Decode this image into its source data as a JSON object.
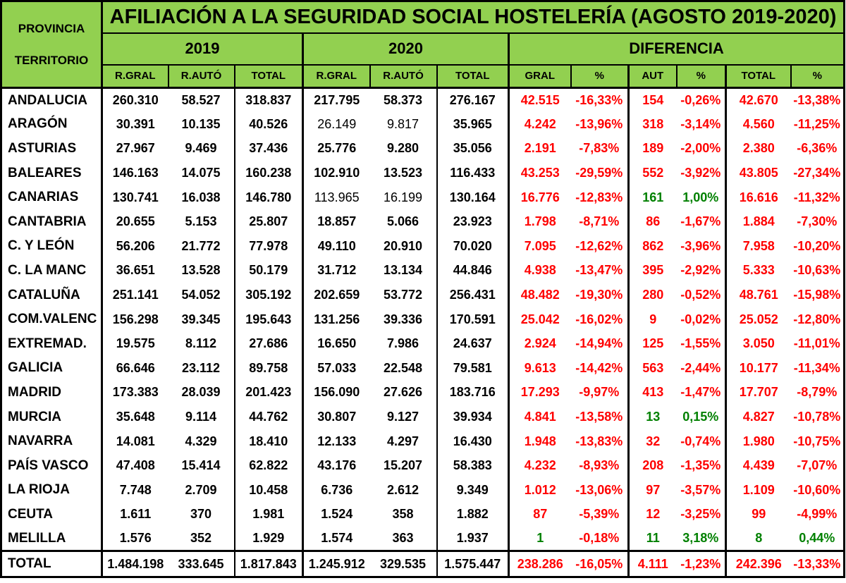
{
  "header": {
    "corner_line1": "PROVINCIA",
    "corner_line2": "TERRITORIO",
    "title": "AFILIACIÓN A LA SEGURIDAD SOCIAL HOSTELERÍA (AGOSTO 2019-2020)",
    "groups": [
      "2019",
      "2020",
      "DIFERENCIA"
    ],
    "sub_columns": [
      "R.GRAL",
      "R.AUTÓ",
      "TOTAL",
      "R.GRAL",
      "R.AUTÓ",
      "TOTAL",
      "GRAL",
      "%",
      "AUT",
      "%",
      "TOTAL",
      "%"
    ]
  },
  "colors": {
    "header_bg": "#92D050",
    "negative_text": "#FF0000",
    "positive_text": "#008000",
    "default_text": "#000000",
    "border": "#000000"
  },
  "rows": [
    {
      "name": "ANDALUCIA",
      "y2019": [
        "260.310",
        "58.527",
        "318.837"
      ],
      "y2020": [
        "217.795",
        "58.373",
        "276.167"
      ],
      "y2020_regular": [],
      "dif": [
        "42.515",
        "-16,33%",
        "154",
        "-0,26%",
        "42.670",
        "-13,38%"
      ],
      "dif_green": []
    },
    {
      "name": "ARAGÓN",
      "y2019": [
        "30.391",
        "10.135",
        "40.526"
      ],
      "y2020": [
        "26.149",
        "9.817",
        "35.965"
      ],
      "y2020_regular": [
        0,
        1
      ],
      "dif": [
        "4.242",
        "-13,96%",
        "318",
        "-3,14%",
        "4.560",
        "-11,25%"
      ],
      "dif_green": []
    },
    {
      "name": "ASTURIAS",
      "y2019": [
        "27.967",
        "9.469",
        "37.436"
      ],
      "y2020": [
        "25.776",
        "9.280",
        "35.056"
      ],
      "y2020_regular": [],
      "dif": [
        "2.191",
        "-7,83%",
        "189",
        "-2,00%",
        "2.380",
        "-6,36%"
      ],
      "dif_green": []
    },
    {
      "name": "BALEARES",
      "y2019": [
        "146.163",
        "14.075",
        "160.238"
      ],
      "y2020": [
        "102.910",
        "13.523",
        "116.433"
      ],
      "y2020_regular": [],
      "dif": [
        "43.253",
        "-29,59%",
        "552",
        "-3,92%",
        "43.805",
        "-27,34%"
      ],
      "dif_green": []
    },
    {
      "name": "CANARIAS",
      "y2019": [
        "130.741",
        "16.038",
        "146.780"
      ],
      "y2020": [
        "113.965",
        "16.199",
        "130.164"
      ],
      "y2020_regular": [
        0,
        1
      ],
      "dif": [
        "16.776",
        "-12,83%",
        "161",
        "1,00%",
        "16.616",
        "-11,32%"
      ],
      "dif_green": [
        2,
        3
      ]
    },
    {
      "name": "CANTABRIA",
      "y2019": [
        "20.655",
        "5.153",
        "25.807"
      ],
      "y2020": [
        "18.857",
        "5.066",
        "23.923"
      ],
      "y2020_regular": [],
      "dif": [
        "1.798",
        "-8,71%",
        "86",
        "-1,67%",
        "1.884",
        "-7,30%"
      ],
      "dif_green": []
    },
    {
      "name": "C. Y LEÓN",
      "y2019": [
        "56.206",
        "21.772",
        "77.978"
      ],
      "y2020": [
        "49.110",
        "20.910",
        "70.020"
      ],
      "y2020_regular": [],
      "dif": [
        "7.095",
        "-12,62%",
        "862",
        "-3,96%",
        "7.958",
        "-10,20%"
      ],
      "dif_green": []
    },
    {
      "name": "C. LA MANC",
      "y2019": [
        "36.651",
        "13.528",
        "50.179"
      ],
      "y2020": [
        "31.712",
        "13.134",
        "44.846"
      ],
      "y2020_regular": [],
      "dif": [
        "4.938",
        "-13,47%",
        "395",
        "-2,92%",
        "5.333",
        "-10,63%"
      ],
      "dif_green": []
    },
    {
      "name": "CATALUÑA",
      "y2019": [
        "251.141",
        "54.052",
        "305.192"
      ],
      "y2020": [
        "202.659",
        "53.772",
        "256.431"
      ],
      "y2020_regular": [],
      "dif": [
        "48.482",
        "-19,30%",
        "280",
        "-0,52%",
        "48.761",
        "-15,98%"
      ],
      "dif_green": []
    },
    {
      "name": "COM.VALENC",
      "y2019": [
        "156.298",
        "39.345",
        "195.643"
      ],
      "y2020": [
        "131.256",
        "39.336",
        "170.591"
      ],
      "y2020_regular": [],
      "dif": [
        "25.042",
        "-16,02%",
        "9",
        "-0,02%",
        "25.052",
        "-12,80%"
      ],
      "dif_green": []
    },
    {
      "name": "EXTREMAD.",
      "y2019": [
        "19.575",
        "8.112",
        "27.686"
      ],
      "y2020": [
        "16.650",
        "7.986",
        "24.637"
      ],
      "y2020_regular": [],
      "dif": [
        "2.924",
        "-14,94%",
        "125",
        "-1,55%",
        "3.050",
        "-11,01%"
      ],
      "dif_green": []
    },
    {
      "name": "GALICIA",
      "y2019": [
        "66.646",
        "23.112",
        "89.758"
      ],
      "y2020": [
        "57.033",
        "22.548",
        "79.581"
      ],
      "y2020_regular": [],
      "dif": [
        "9.613",
        "-14,42%",
        "563",
        "-2,44%",
        "10.177",
        "-11,34%"
      ],
      "dif_green": []
    },
    {
      "name": "MADRID",
      "y2019": [
        "173.383",
        "28.039",
        "201.423"
      ],
      "y2020": [
        "156.090",
        "27.626",
        "183.716"
      ],
      "y2020_regular": [],
      "dif": [
        "17.293",
        "-9,97%",
        "413",
        "-1,47%",
        "17.707",
        "-8,79%"
      ],
      "dif_green": []
    },
    {
      "name": "MURCIA",
      "y2019": [
        "35.648",
        "9.114",
        "44.762"
      ],
      "y2020": [
        "30.807",
        "9.127",
        "39.934"
      ],
      "y2020_regular": [],
      "dif": [
        "4.841",
        "-13,58%",
        "13",
        "0,15%",
        "4.827",
        "-10,78%"
      ],
      "dif_green": [
        2,
        3
      ]
    },
    {
      "name": "NAVARRA",
      "y2019": [
        "14.081",
        "4.329",
        "18.410"
      ],
      "y2020": [
        "12.133",
        "4.297",
        "16.430"
      ],
      "y2020_regular": [],
      "dif": [
        "1.948",
        "-13,83%",
        "32",
        "-0,74%",
        "1.980",
        "-10,75%"
      ],
      "dif_green": []
    },
    {
      "name": "PAÍS VASCO",
      "y2019": [
        "47.408",
        "15.414",
        "62.822"
      ],
      "y2020": [
        "43.176",
        "15.207",
        "58.383"
      ],
      "y2020_regular": [],
      "dif": [
        "4.232",
        "-8,93%",
        "208",
        "-1,35%",
        "4.439",
        "-7,07%"
      ],
      "dif_green": []
    },
    {
      "name": "LA RIOJA",
      "y2019": [
        "7.748",
        "2.709",
        "10.458"
      ],
      "y2020": [
        "6.736",
        "2.612",
        "9.349"
      ],
      "y2020_regular": [],
      "dif": [
        "1.012",
        "-13,06%",
        "97",
        "-3,57%",
        "1.109",
        "-10,60%"
      ],
      "dif_green": []
    },
    {
      "name": "CEUTA",
      "y2019": [
        "1.611",
        "370",
        "1.981"
      ],
      "y2020": [
        "1.524",
        "358",
        "1.882"
      ],
      "y2020_regular": [],
      "dif": [
        "87",
        "-5,39%",
        "12",
        "-3,25%",
        "99",
        "-4,99%"
      ],
      "dif_green": []
    },
    {
      "name": "MELILLA",
      "y2019": [
        "1.576",
        "352",
        "1.929"
      ],
      "y2020": [
        "1.574",
        "363",
        "1.937"
      ],
      "y2020_regular": [],
      "dif": [
        "1",
        "-0,18%",
        "11",
        "3,18%",
        "8",
        "0,44%"
      ],
      "dif_green": [
        0,
        2,
        3,
        4,
        5
      ]
    }
  ],
  "total_row": {
    "label": "TOTAL",
    "y2019": [
      "1.484.198",
      "333.645",
      "1.817.843"
    ],
    "y2020": [
      "1.245.912",
      "329.535",
      "1.575.447"
    ],
    "dif": [
      "238.286",
      "-16,05%",
      "4.111",
      "-1,23%",
      "242.396",
      "-13,33%"
    ],
    "dif_green": []
  }
}
